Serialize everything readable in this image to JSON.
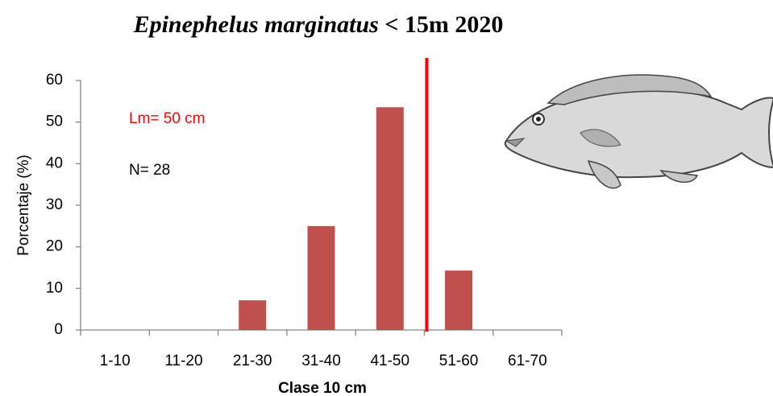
{
  "chart_data": {
    "type": "bar",
    "title_parts": [
      "Epinephelus marginatus",
      "< 15m  2020"
    ],
    "x_label": "Clase 10  cm",
    "y_label": "Porcentaje (%)",
    "categories": [
      "1-10",
      "11-20",
      "21-30",
      "31-40",
      "41-50",
      "51-60",
      "61-70"
    ],
    "values": [
      0,
      0,
      7.14,
      25,
      53.57,
      14.29,
      0
    ],
    "color": "#c0504d",
    "ylim": [
      0,
      60
    ],
    "yticks": [
      0,
      10,
      20,
      30,
      40,
      50,
      60
    ],
    "annotations": [
      {
        "text": "Lm= 50 cm",
        "color": "#ff0000"
      },
      {
        "text": "N= 28",
        "color": "#000000"
      }
    ],
    "reference_line_color": "#ff0000"
  }
}
